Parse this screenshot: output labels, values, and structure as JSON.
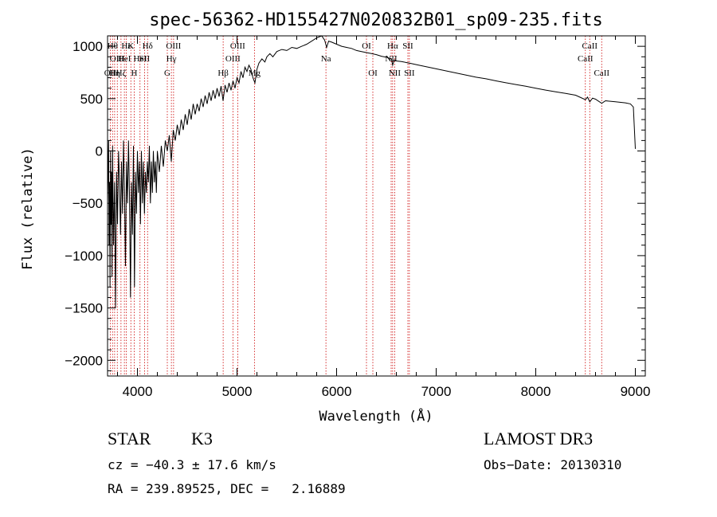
{
  "chart_data": {
    "type": "line",
    "title": "spec-56362-HD155427N020832B01_sp09-235.fits",
    "xlabel": "Wavelength (Å)",
    "ylabel": "Flux (relative)",
    "xlim": [
      3700,
      9100
    ],
    "ylim": [
      -2150,
      1100
    ],
    "xticks": [
      4000,
      5000,
      6000,
      7000,
      8000,
      9000
    ],
    "yticks": [
      -2000,
      -1500,
      -1000,
      -500,
      0,
      500,
      1000
    ],
    "series": [
      {
        "name": "flux",
        "color": "#000000",
        "points": [
          [
            3700,
            -500
          ],
          [
            3710,
            100
          ],
          [
            3715,
            -900
          ],
          [
            3720,
            -300
          ],
          [
            3725,
            -1300
          ],
          [
            3730,
            0
          ],
          [
            3735,
            -700
          ],
          [
            3740,
            -200
          ],
          [
            3745,
            -1200
          ],
          [
            3750,
            50
          ],
          [
            3760,
            -900
          ],
          [
            3770,
            -300
          ],
          [
            3780,
            -1500
          ],
          [
            3790,
            -200
          ],
          [
            3800,
            -700
          ],
          [
            3810,
            0
          ],
          [
            3820,
            -300
          ],
          [
            3830,
            -800
          ],
          [
            3840,
            -100
          ],
          [
            3850,
            -600
          ],
          [
            3860,
            100
          ],
          [
            3870,
            -400
          ],
          [
            3880,
            -1100
          ],
          [
            3890,
            -100
          ],
          [
            3900,
            -500
          ],
          [
            3910,
            100
          ],
          [
            3920,
            -400
          ],
          [
            3930,
            -1400
          ],
          [
            3940,
            -300
          ],
          [
            3950,
            -800
          ],
          [
            3960,
            50
          ],
          [
            3970,
            -1300
          ],
          [
            3980,
            -200
          ],
          [
            3990,
            -600
          ],
          [
            4000,
            0
          ],
          [
            4010,
            -400
          ],
          [
            4020,
            -100
          ],
          [
            4030,
            -700
          ],
          [
            4040,
            0
          ],
          [
            4050,
            -500
          ],
          [
            4060,
            -100
          ],
          [
            4070,
            -600
          ],
          [
            4080,
            -200
          ],
          [
            4090,
            -400
          ],
          [
            4100,
            -100
          ],
          [
            4110,
            -300
          ],
          [
            4120,
            50
          ],
          [
            4130,
            -500
          ],
          [
            4140,
            -100
          ],
          [
            4150,
            -400
          ],
          [
            4160,
            0
          ],
          [
            4170,
            -300
          ],
          [
            4180,
            -100
          ],
          [
            4190,
            -400
          ],
          [
            4200,
            0
          ],
          [
            4220,
            -200
          ],
          [
            4240,
            50
          ],
          [
            4260,
            -150
          ],
          [
            4280,
            100
          ],
          [
            4300,
            0
          ],
          [
            4320,
            150
          ],
          [
            4340,
            -100
          ],
          [
            4360,
            200
          ],
          [
            4380,
            100
          ],
          [
            4400,
            250
          ],
          [
            4420,
            150
          ],
          [
            4440,
            300
          ],
          [
            4460,
            200
          ],
          [
            4480,
            350
          ],
          [
            4500,
            250
          ],
          [
            4520,
            400
          ],
          [
            4540,
            300
          ],
          [
            4560,
            450
          ],
          [
            4580,
            350
          ],
          [
            4600,
            450
          ],
          [
            4620,
            380
          ],
          [
            4640,
            500
          ],
          [
            4660,
            420
          ],
          [
            4680,
            530
          ],
          [
            4700,
            450
          ],
          [
            4720,
            560
          ],
          [
            4740,
            480
          ],
          [
            4760,
            580
          ],
          [
            4780,
            500
          ],
          [
            4800,
            600
          ],
          [
            4820,
            520
          ],
          [
            4840,
            620
          ],
          [
            4860,
            480
          ],
          [
            4880,
            630
          ],
          [
            4900,
            560
          ],
          [
            4920,
            650
          ],
          [
            4940,
            580
          ],
          [
            4960,
            670
          ],
          [
            4980,
            600
          ],
          [
            5000,
            700
          ],
          [
            5020,
            650
          ],
          [
            5040,
            760
          ],
          [
            5060,
            700
          ],
          [
            5080,
            800
          ],
          [
            5100,
            760
          ],
          [
            5120,
            820
          ],
          [
            5140,
            780
          ],
          [
            5160,
            700
          ],
          [
            5180,
            650
          ],
          [
            5200,
            780
          ],
          [
            5220,
            840
          ],
          [
            5250,
            880
          ],
          [
            5280,
            850
          ],
          [
            5300,
            900
          ],
          [
            5330,
            930
          ],
          [
            5360,
            900
          ],
          [
            5400,
            950
          ],
          [
            5450,
            970
          ],
          [
            5500,
            960
          ],
          [
            5550,
            990
          ],
          [
            5600,
            980
          ],
          [
            5650,
            1000
          ],
          [
            5700,
            1020
          ],
          [
            5750,
            1050
          ],
          [
            5800,
            1080
          ],
          [
            5850,
            1100
          ],
          [
            5880,
            1060
          ],
          [
            5900,
            990
          ],
          [
            5920,
            1050
          ],
          [
            5950,
            1040
          ],
          [
            6000,
            1020
          ],
          [
            6050,
            1000
          ],
          [
            6100,
            990
          ],
          [
            6150,
            980
          ],
          [
            6200,
            960
          ],
          [
            6250,
            950
          ],
          [
            6300,
            940
          ],
          [
            6350,
            930
          ],
          [
            6400,
            920
          ],
          [
            6450,
            905
          ],
          [
            6500,
            895
          ],
          [
            6550,
            880
          ],
          [
            6563,
            820
          ],
          [
            6580,
            870
          ],
          [
            6600,
            860
          ],
          [
            6650,
            855
          ],
          [
            6700,
            845
          ],
          [
            6750,
            835
          ],
          [
            6800,
            825
          ],
          [
            6900,
            805
          ],
          [
            7000,
            785
          ],
          [
            7100,
            765
          ],
          [
            7200,
            745
          ],
          [
            7300,
            725
          ],
          [
            7400,
            705
          ],
          [
            7500,
            690
          ],
          [
            7600,
            670
          ],
          [
            7700,
            652
          ],
          [
            7800,
            635
          ],
          [
            7900,
            618
          ],
          [
            8000,
            600
          ],
          [
            8100,
            582
          ],
          [
            8200,
            566
          ],
          [
            8300,
            550
          ],
          [
            8400,
            533
          ],
          [
            8498,
            490
          ],
          [
            8520,
            515
          ],
          [
            8542,
            470
          ],
          [
            8570,
            505
          ],
          [
            8600,
            495
          ],
          [
            8662,
            455
          ],
          [
            8700,
            480
          ],
          [
            8800,
            470
          ],
          [
            8900,
            460
          ],
          [
            8950,
            450
          ],
          [
            8980,
            420
          ],
          [
            9000,
            20
          ]
        ]
      }
    ],
    "line_markers": [
      {
        "wl": 3727,
        "label": "OII",
        "row": 3
      },
      {
        "wl": 3750,
        "label": "Hθ",
        "row": 1
      },
      {
        "wl": 3771,
        "label": "Hη",
        "row": 3
      },
      {
        "wl": 3798,
        "label": "OIII",
        "row": 2
      },
      {
        "wl": 3835,
        "label": "Hζ",
        "row": 3
      },
      {
        "wl": 3869,
        "label": "HeI",
        "row": 2
      },
      {
        "wl": 3889,
        "label": "Hε",
        "row": 1
      },
      {
        "wl": 3934,
        "label": "K",
        "row": 1
      },
      {
        "wl": 3968,
        "label": "H",
        "row": 3
      },
      {
        "wl": 4026,
        "label": "HeI",
        "row": 2
      },
      {
        "wl": 4072,
        "label": "SII",
        "row": 2
      },
      {
        "wl": 4102,
        "label": "Hδ",
        "row": 1
      },
      {
        "wl": 4300,
        "label": "G",
        "row": 3
      },
      {
        "wl": 4341,
        "label": "Hγ",
        "row": 2
      },
      {
        "wl": 4363,
        "label": "OIII",
        "row": 1
      },
      {
        "wl": 4861,
        "label": "Hβ",
        "row": 3
      },
      {
        "wl": 4959,
        "label": "OIII",
        "row": 2
      },
      {
        "wl": 5007,
        "label": "OIII",
        "row": 1
      },
      {
        "wl": 5175,
        "label": "Mg",
        "row": 3
      },
      {
        "wl": 5893,
        "label": "Na",
        "row": 2
      },
      {
        "wl": 6300,
        "label": "OI",
        "row": 1
      },
      {
        "wl": 6364,
        "label": "OI",
        "row": 3
      },
      {
        "wl": 6548,
        "label": "NII",
        "row": 2
      },
      {
        "wl": 6563,
        "label": "Hα",
        "row": 1
      },
      {
        "wl": 6583,
        "label": "NII",
        "row": 3
      },
      {
        "wl": 6716,
        "label": "SII",
        "row": 1
      },
      {
        "wl": 6731,
        "label": "SII",
        "row": 3
      },
      {
        "wl": 8498,
        "label": "CaII",
        "row": 2
      },
      {
        "wl": 8542,
        "label": "CaII",
        "row": 1
      },
      {
        "wl": 8662,
        "label": "CaII",
        "row": 3
      }
    ],
    "marker_color": "#cc0000"
  },
  "info": {
    "object_type": "STAR",
    "subclass": "K3",
    "survey": "LAMOST DR3",
    "cz": "cz = −40.3 ± 17.6 km/s",
    "obs_date": "Obs−Date: 20130310",
    "coords": "RA = 239.89525, DEC =   2.16889"
  }
}
